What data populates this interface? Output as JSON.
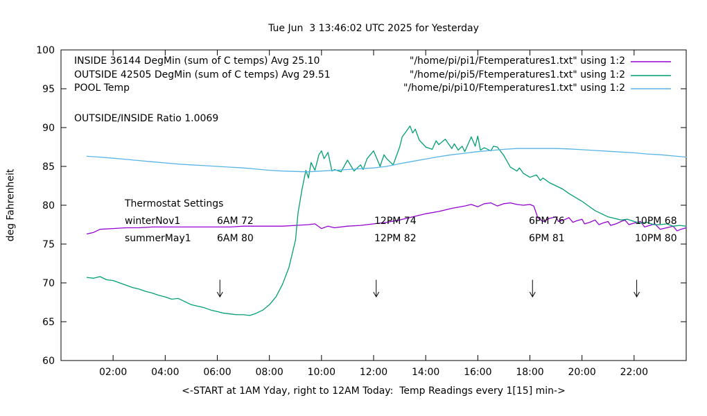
{
  "title": "Tue Jun  3 13:46:02 UTC 2025 for Yesterday",
  "ratio_text": "OUTSIDE/INSIDE Ratio 1.0069",
  "legend": [
    {
      "label": "INSIDE 36144 DegMin (sum of C temps) Avg 25.10",
      "file": "\"/home/pi/pi1/Ftemperatures1.txt\" using 1:2",
      "color": "#9400d3"
    },
    {
      "label": "OUTSIDE 42505 DegMin (sum of C temps) Avg 29.51",
      "file": "\"/home/pi/pi5/Ftemperatures1.txt\" using 1:2",
      "color": "#009e73"
    },
    {
      "label": "POOL Temp",
      "file": "\"/home/pi/pi10/Ftemperatures1.txt\" using 1:2",
      "color": "#56b4e9"
    }
  ],
  "thermostat": {
    "heading": "Thermostat Settings",
    "rows": [
      {
        "name": "winterNov1",
        "settings": [
          "6AM 72",
          "12PM 74",
          "6PM 76",
          "10PM 68"
        ]
      },
      {
        "name": "summerMay1",
        "settings": [
          "6AM 80",
          "12PM 82",
          "6PM 81",
          "10PM 80"
        ]
      }
    ]
  },
  "chart_data": {
    "type": "line",
    "title": "Tue Jun  3 13:46:02 UTC 2025 for Yesterday",
    "xlabel": "<-START at 1AM Yday, right to 12AM Today:  Temp Readings every 1[15] min->",
    "ylabel": "deg Fahrenheit",
    "xlim": [
      0,
      24
    ],
    "ylim": [
      60,
      100
    ],
    "grid": false,
    "legend_position": "top-left-inside",
    "yticks": [
      60,
      65,
      70,
      75,
      80,
      85,
      90,
      95,
      100
    ],
    "xticks": [
      {
        "v": 2,
        "label": "02:00"
      },
      {
        "v": 4,
        "label": "04:00"
      },
      {
        "v": 6,
        "label": "06:00"
      },
      {
        "v": 8,
        "label": "08:00"
      },
      {
        "v": 10,
        "label": "10:00"
      },
      {
        "v": 12,
        "label": "12:00"
      },
      {
        "v": 14,
        "label": "14:00"
      },
      {
        "v": 16,
        "label": "16:00"
      },
      {
        "v": 18,
        "label": "18:00"
      },
      {
        "v": 20,
        "label": "20:00"
      },
      {
        "v": 22,
        "label": "22:00"
      }
    ],
    "arrows": [
      {
        "x": 6.1,
        "y_from": 70.4,
        "y_to": 68.2
      },
      {
        "x": 12.1,
        "y_from": 70.4,
        "y_to": 68.2
      },
      {
        "x": 18.1,
        "y_from": 70.4,
        "y_to": 68.2
      },
      {
        "x": 22.1,
        "y_from": 70.4,
        "y_to": 68.2
      }
    ],
    "series": [
      {
        "id": "inside",
        "name": "INSIDE 36144 DegMin (sum of C temps) Avg 25.10",
        "color": "#9400d3",
        "x": [
          1,
          1.25,
          1.5,
          2,
          2.5,
          3,
          3.5,
          4,
          4.5,
          5,
          5.5,
          6,
          6.5,
          7,
          7.5,
          8,
          8.5,
          9,
          9.5,
          9.75,
          10,
          10.25,
          10.5,
          11,
          11.5,
          12,
          12.5,
          13,
          13.5,
          14,
          14.5,
          15,
          15.5,
          15.75,
          16,
          16.25,
          16.5,
          16.75,
          17,
          17.25,
          17.5,
          17.75,
          18,
          18.15,
          18.3,
          18.5,
          18.75,
          19,
          19.1,
          19.3,
          19.5,
          19.65,
          19.8,
          20,
          20.1,
          20.3,
          20.5,
          20.65,
          20.8,
          21,
          21.1,
          21.3,
          21.5,
          21.65,
          21.8,
          22,
          22.25,
          22.4,
          22.6,
          22.8,
          23,
          23.25,
          23.5,
          23.65,
          23.8,
          24
        ],
        "y": [
          76.3,
          76.5,
          76.9,
          77.0,
          77.1,
          77.1,
          77.2,
          77.2,
          77.2,
          77.2,
          77.2,
          77.2,
          77.2,
          77.3,
          77.3,
          77.3,
          77.3,
          77.4,
          77.5,
          77.6,
          77.0,
          77.3,
          77.1,
          77.3,
          77.4,
          77.6,
          77.8,
          78.1,
          78.5,
          78.9,
          79.2,
          79.6,
          79.9,
          80.1,
          79.8,
          80.2,
          80.3,
          79.9,
          80.2,
          80.3,
          80.1,
          80.0,
          80.1,
          79.9,
          78.4,
          77.9,
          78.3,
          78.5,
          77.9,
          78.1,
          78.4,
          77.8,
          78.0,
          78.2,
          77.6,
          77.8,
          78.1,
          77.5,
          77.7,
          77.9,
          77.4,
          77.6,
          77.9,
          78.1,
          77.5,
          77.7,
          77.9,
          77.2,
          77.4,
          77.6,
          76.9,
          77.1,
          77.3,
          76.7,
          76.9,
          77.1
        ]
      },
      {
        "id": "outside",
        "name": "OUTSIDE 42505 DegMin (sum of C temps) Avg 29.51",
        "color": "#009e73",
        "x": [
          1,
          1.25,
          1.5,
          1.75,
          2,
          2.25,
          2.5,
          2.75,
          3,
          3.25,
          3.5,
          3.75,
          4,
          4.25,
          4.5,
          4.75,
          5,
          5.25,
          5.5,
          5.75,
          6,
          6.25,
          6.5,
          6.75,
          7,
          7.25,
          7.5,
          7.75,
          8,
          8.25,
          8.5,
          8.75,
          9,
          9.1,
          9.25,
          9.4,
          9.5,
          9.6,
          9.75,
          9.9,
          10,
          10.1,
          10.25,
          10.4,
          10.5,
          10.75,
          11,
          11.25,
          11.5,
          11.6,
          11.75,
          12,
          12.1,
          12.25,
          12.4,
          12.5,
          12.75,
          13,
          13.1,
          13.25,
          13.4,
          13.5,
          13.6,
          13.75,
          14,
          14.25,
          14.4,
          14.5,
          14.75,
          15,
          15.1,
          15.25,
          15.4,
          15.5,
          15.75,
          15.9,
          16,
          16.1,
          16.25,
          16.5,
          16.6,
          16.75,
          17,
          17.25,
          17.5,
          17.6,
          17.75,
          18,
          18.25,
          18.4,
          18.5,
          18.75,
          19,
          19.25,
          19.5,
          19.75,
          20,
          20.25,
          20.5,
          20.75,
          21,
          21.25,
          21.5,
          21.75,
          22,
          22.25,
          22.5,
          22.75,
          23,
          23.25,
          23.5,
          23.75,
          24
        ],
        "y": [
          70.7,
          70.6,
          70.8,
          70.4,
          70.3,
          70.0,
          69.7,
          69.4,
          69.2,
          68.9,
          68.7,
          68.4,
          68.2,
          67.9,
          68.0,
          67.6,
          67.2,
          67.0,
          66.8,
          66.5,
          66.3,
          66.1,
          66.0,
          65.9,
          65.9,
          65.8,
          66.1,
          66.5,
          67.2,
          68.2,
          69.8,
          72.0,
          75.5,
          79.0,
          82.0,
          84.5,
          83.5,
          85.5,
          84.5,
          86.5,
          87.0,
          86.0,
          86.8,
          84.4,
          84.6,
          84.3,
          85.8,
          84.4,
          85.2,
          84.6,
          86.0,
          87.0,
          86.2,
          85.0,
          86.5,
          86.0,
          85.2,
          87.5,
          88.8,
          89.5,
          90.2,
          89.3,
          89.8,
          88.4,
          87.5,
          87.2,
          88.3,
          87.8,
          88.5,
          87.3,
          87.9,
          87.1,
          87.6,
          86.9,
          88.8,
          87.6,
          88.9,
          87.1,
          87.4,
          87.0,
          87.6,
          87.5,
          86.4,
          84.9,
          84.4,
          84.8,
          84.1,
          83.6,
          83.9,
          83.2,
          83.5,
          82.9,
          82.5,
          82.1,
          81.5,
          81.0,
          80.5,
          79.9,
          79.3,
          78.9,
          78.5,
          78.3,
          78.1,
          78.2,
          77.9,
          77.7,
          77.8,
          77.5,
          77.5,
          77.6,
          77.3,
          77.4,
          77.3
        ]
      },
      {
        "id": "pool",
        "name": "POOL Temp",
        "color": "#56b4e9",
        "x": [
          1,
          1.5,
          2,
          2.5,
          3,
          3.5,
          4,
          4.5,
          5,
          5.5,
          6,
          6.5,
          7,
          7.5,
          8,
          8.5,
          9,
          9.5,
          10,
          10.5,
          11,
          11.5,
          12,
          12.5,
          13,
          13.5,
          14,
          14.5,
          15,
          15.5,
          16,
          16.5,
          17,
          17.5,
          18,
          18.5,
          19,
          19.5,
          20,
          20.5,
          21,
          21.5,
          22,
          22.5,
          23,
          23.5,
          24
        ],
        "y": [
          86.3,
          86.2,
          86.05,
          85.9,
          85.75,
          85.6,
          85.45,
          85.3,
          85.2,
          85.1,
          85.0,
          84.9,
          84.8,
          84.65,
          84.5,
          84.4,
          84.35,
          84.3,
          84.4,
          84.5,
          84.6,
          84.7,
          84.8,
          85.0,
          85.35,
          85.65,
          85.95,
          86.25,
          86.5,
          86.7,
          86.9,
          87.05,
          87.2,
          87.3,
          87.3,
          87.3,
          87.3,
          87.25,
          87.15,
          87.05,
          86.95,
          86.85,
          86.75,
          86.6,
          86.5,
          86.35,
          86.2
        ]
      }
    ]
  }
}
